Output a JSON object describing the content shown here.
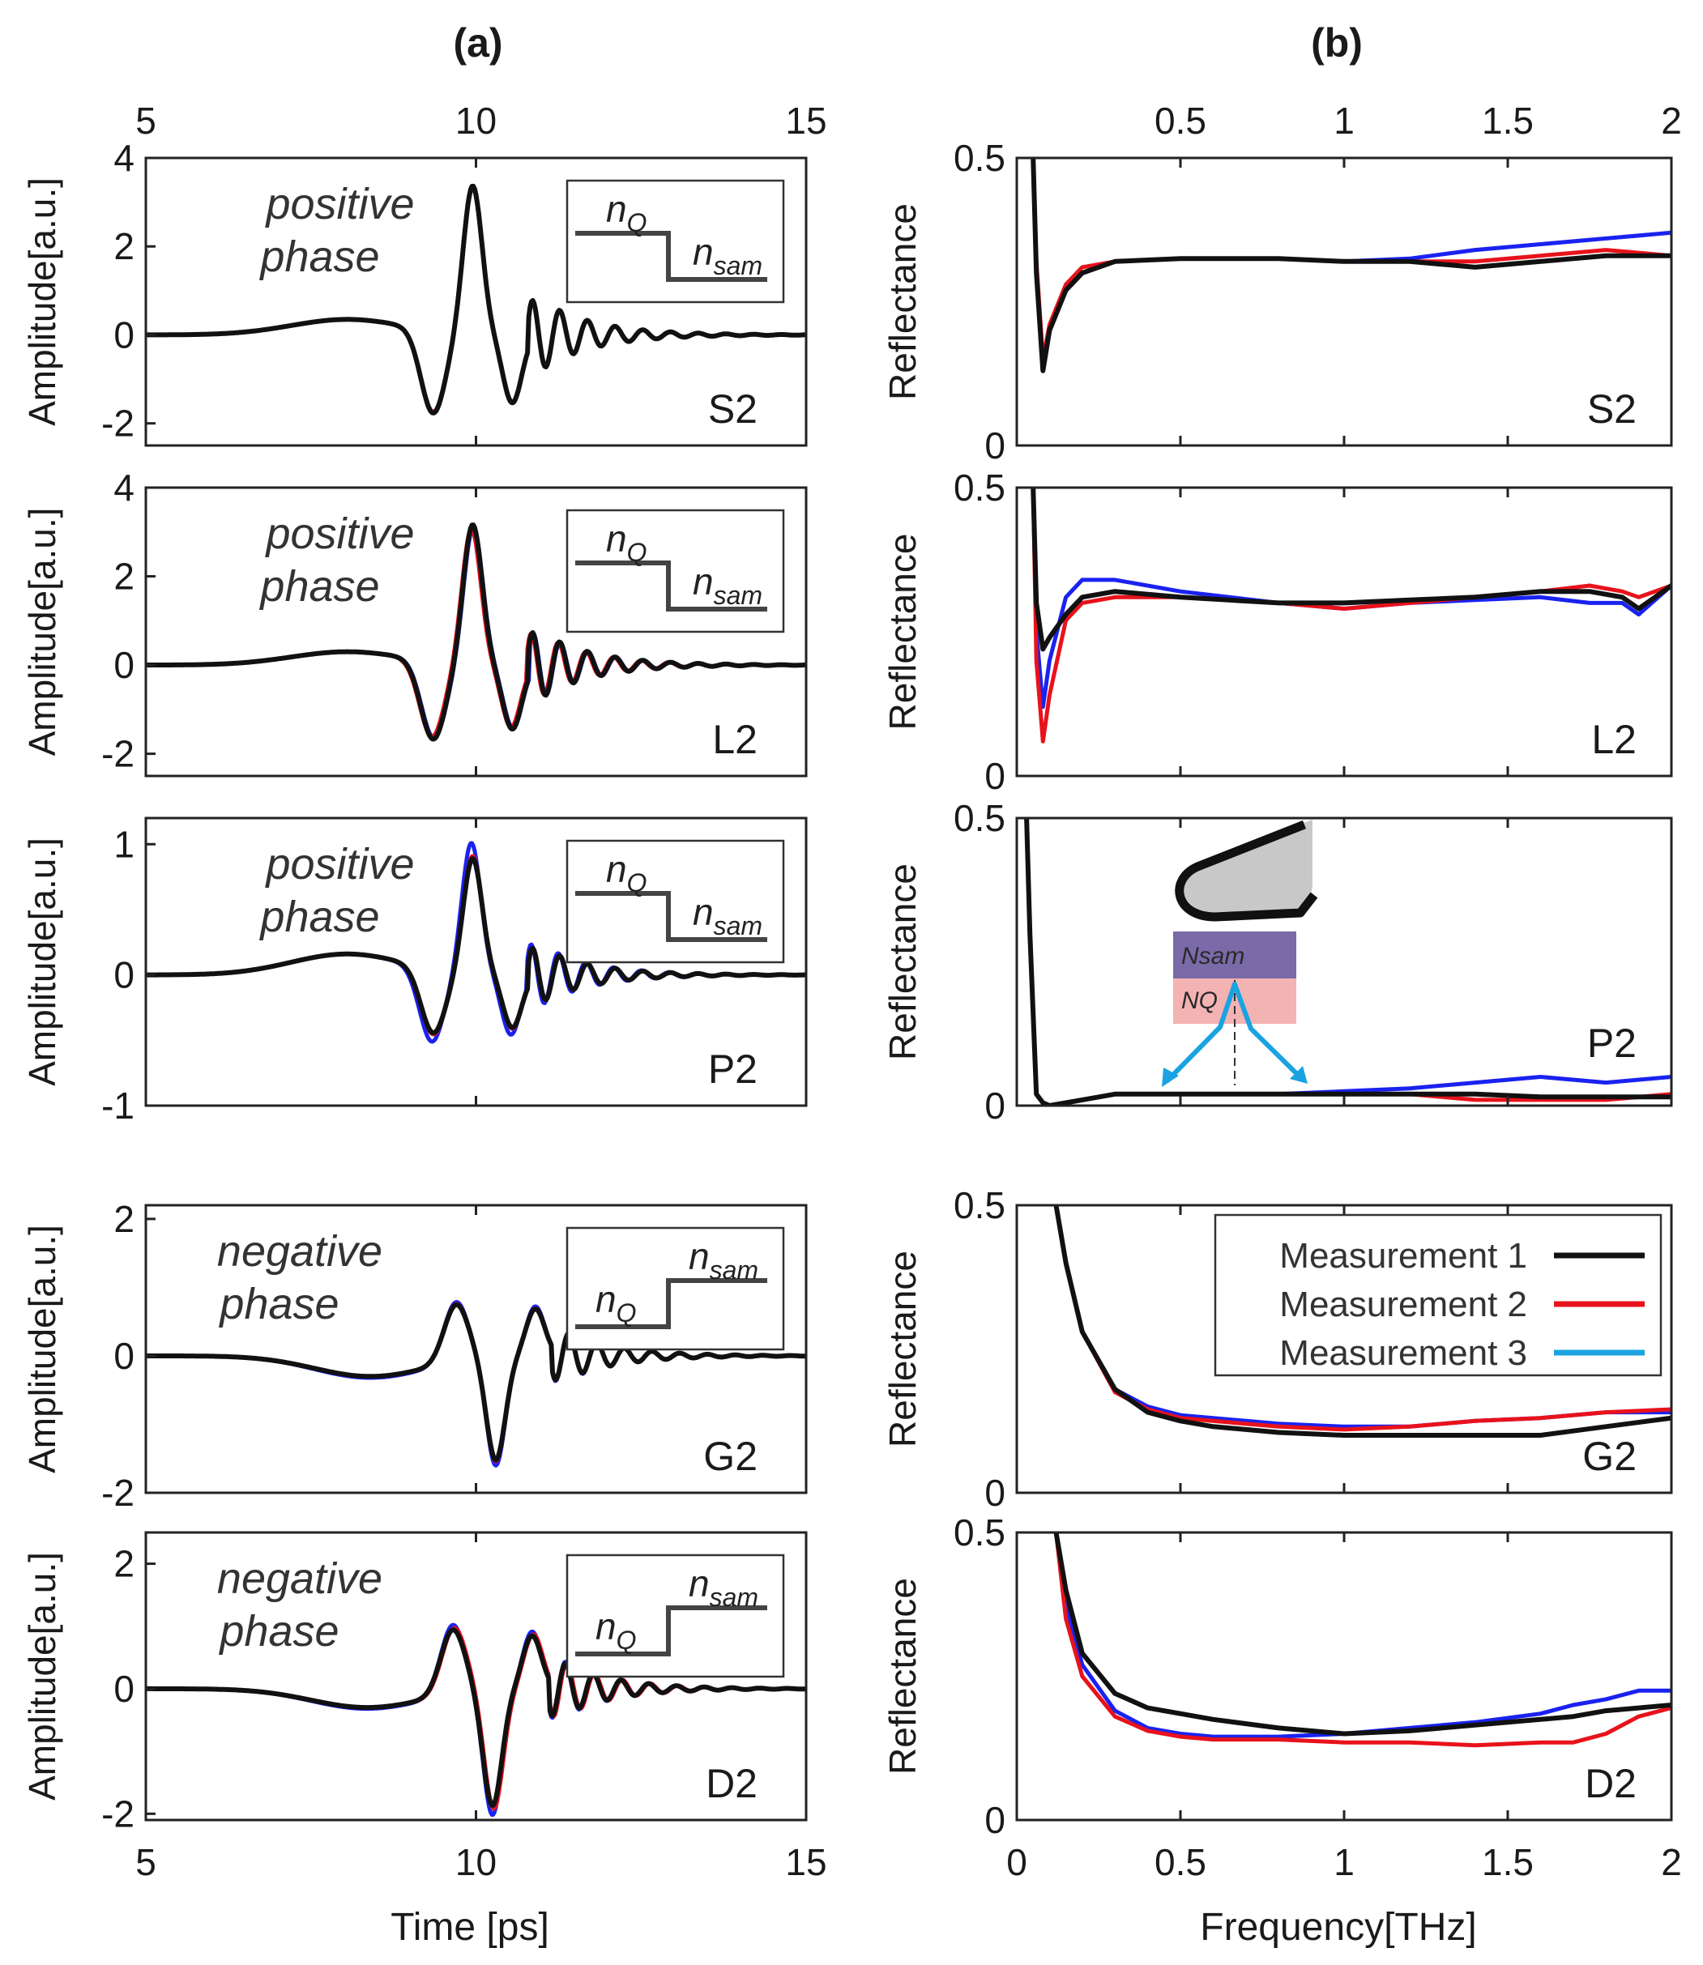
{
  "panels": {
    "a_label": "(a)",
    "b_label": "(b)"
  },
  "phase_labels": {
    "positive": [
      "positive",
      "phase"
    ],
    "negative": [
      "negative",
      "phase"
    ]
  },
  "inset": {
    "n": "n",
    "sub_q": "Q",
    "sub_sam": "sam"
  },
  "illustration": {
    "n_sam": "Nsam",
    "n_q": "NQ"
  },
  "colors": {
    "m1": "#111111",
    "m2": "#e8121b",
    "m3": "#1a22f0",
    "legend_m3": "#1aa3e0"
  },
  "chart_data": [
    {
      "type": "line",
      "id": "a",
      "title": "(a)",
      "xlabel": "Time [ps]",
      "ylabel": "Amplitude[a.u.]",
      "xlim": [
        5,
        15
      ],
      "xticks": [
        "5",
        "10",
        "15"
      ],
      "subplots": [
        {
          "sample": "S2",
          "phase": "positive",
          "ylim": [
            -2.5,
            4
          ],
          "yticks": [
            "-2",
            "0",
            "2",
            "4"
          ],
          "series": [
            {
              "name": "Measurement 1",
              "t0": 9.95,
              "amp": 3.35,
              "pre": 0.35
            },
            {
              "name": "Measurement 2",
              "t0": 9.95,
              "amp": 3.3,
              "pre": 0.35
            },
            {
              "name": "Measurement 3",
              "t0": 9.95,
              "amp": 3.32,
              "pre": 0.35
            }
          ]
        },
        {
          "sample": "L2",
          "phase": "positive",
          "ylim": [
            -2.5,
            4
          ],
          "yticks": [
            "-2",
            "0",
            "2",
            "4"
          ],
          "series": [
            {
              "name": "Measurement 1",
              "t0": 9.95,
              "amp": 3.15,
              "pre": 0.3
            },
            {
              "name": "Measurement 2",
              "t0": 9.93,
              "amp": 3.05,
              "pre": 0.3
            },
            {
              "name": "Measurement 3",
              "t0": 9.96,
              "amp": 3.1,
              "pre": 0.3
            }
          ]
        },
        {
          "sample": "P2",
          "phase": "positive",
          "ylim": [
            -1,
            1.2
          ],
          "yticks": [
            "-1",
            "0",
            "1"
          ],
          "series": [
            {
              "name": "Measurement 1",
              "t0": 9.95,
              "amp": 0.88,
              "pre": 0.16
            },
            {
              "name": "Measurement 2",
              "t0": 9.95,
              "amp": 0.9,
              "pre": 0.16
            },
            {
              "name": "Measurement 3",
              "t0": 9.93,
              "amp": 1.0,
              "pre": 0.16
            }
          ]
        },
        {
          "sample": "G2",
          "phase": "negative",
          "ylim": [
            -2,
            2.2
          ],
          "yticks": [
            "-2",
            "0",
            "2"
          ],
          "series": [
            {
              "name": "Measurement 1",
              "t0": 10.3,
              "amp": -1.5,
              "pre": -0.3
            },
            {
              "name": "Measurement 2",
              "t0": 10.3,
              "amp": -1.52,
              "pre": -0.3
            },
            {
              "name": "Measurement 3",
              "t0": 10.3,
              "amp": -1.58,
              "pre": -0.32
            }
          ]
        },
        {
          "sample": "D2",
          "phase": "negative",
          "ylim": [
            -2.1,
            2.5
          ],
          "yticks": [
            "-2",
            "0",
            "2"
          ],
          "series": [
            {
              "name": "Measurement 1",
              "t0": 10.25,
              "amp": -1.85,
              "pre": -0.3
            },
            {
              "name": "Measurement 2",
              "t0": 10.27,
              "amp": -1.9,
              "pre": -0.3
            },
            {
              "name": "Measurement 3",
              "t0": 10.25,
              "amp": -2.0,
              "pre": -0.32
            }
          ]
        }
      ]
    },
    {
      "type": "line",
      "id": "b",
      "title": "(b)",
      "xlabel": "Frequency[THz]",
      "ylabel": "Reflectance",
      "xlim": [
        0,
        2
      ],
      "xticks": [
        "0",
        "0.5",
        "1",
        "1.5",
        "2"
      ],
      "top_xticks": [
        "0.5",
        "1",
        "1.5",
        "2"
      ],
      "ylim": [
        0,
        0.5
      ],
      "yticks": [
        "0",
        "0.5"
      ],
      "legend": {
        "position": "top-right",
        "entries": [
          "Measurement 1",
          "Measurement 2",
          "Measurement 3"
        ]
      },
      "subplots": [
        {
          "sample": "S2",
          "x": [
            0.05,
            0.06,
            0.08,
            0.1,
            0.15,
            0.2,
            0.3,
            0.5,
            0.8,
            1.0,
            1.2,
            1.4,
            1.6,
            1.8,
            2.0
          ],
          "series": [
            {
              "name": "Measurement 1",
              "values": [
                0.5,
                0.3,
                0.13,
                0.2,
                0.27,
                0.3,
                0.32,
                0.325,
                0.325,
                0.32,
                0.32,
                0.31,
                0.32,
                0.33,
                0.33
              ]
            },
            {
              "name": "Measurement 2",
              "values": [
                0.5,
                0.32,
                0.15,
                0.21,
                0.28,
                0.31,
                0.32,
                0.325,
                0.325,
                0.32,
                0.32,
                0.32,
                0.33,
                0.34,
                0.33
              ]
            },
            {
              "name": "Measurement 3",
              "values": [
                0.5,
                0.31,
                0.14,
                0.2,
                0.27,
                0.3,
                0.32,
                0.325,
                0.325,
                0.32,
                0.325,
                0.34,
                0.35,
                0.36,
                0.37
              ]
            }
          ]
        },
        {
          "sample": "L2",
          "x": [
            0.05,
            0.06,
            0.08,
            0.1,
            0.15,
            0.2,
            0.3,
            0.5,
            0.8,
            1.0,
            1.2,
            1.4,
            1.6,
            1.75,
            1.85,
            1.9,
            2.0
          ],
          "series": [
            {
              "name": "Measurement 1",
              "values": [
                0.5,
                0.3,
                0.22,
                0.24,
                0.28,
                0.31,
                0.32,
                0.31,
                0.3,
                0.3,
                0.305,
                0.31,
                0.32,
                0.32,
                0.31,
                0.29,
                0.33
              ]
            },
            {
              "name": "Measurement 2",
              "values": [
                0.5,
                0.2,
                0.06,
                0.14,
                0.27,
                0.3,
                0.31,
                0.31,
                0.3,
                0.29,
                0.3,
                0.31,
                0.32,
                0.33,
                0.32,
                0.31,
                0.33
              ]
            },
            {
              "name": "Measurement 3",
              "values": [
                0.5,
                0.25,
                0.12,
                0.2,
                0.31,
                0.34,
                0.34,
                0.32,
                0.3,
                0.29,
                0.3,
                0.305,
                0.31,
                0.3,
                0.3,
                0.28,
                0.33
              ]
            }
          ]
        },
        {
          "sample": "P2",
          "x": [
            0.03,
            0.04,
            0.06,
            0.08,
            0.1,
            0.15,
            0.2,
            0.3,
            0.5,
            0.8,
            1.0,
            1.2,
            1.4,
            1.6,
            1.8,
            2.0
          ],
          "series": [
            {
              "name": "Measurement 1",
              "values": [
                0.5,
                0.3,
                0.02,
                0.005,
                0.0,
                0.005,
                0.01,
                0.02,
                0.02,
                0.02,
                0.02,
                0.02,
                0.02,
                0.015,
                0.015,
                0.015
              ]
            },
            {
              "name": "Measurement 2",
              "values": [
                0.5,
                0.3,
                0.02,
                0.005,
                0.0,
                0.005,
                0.01,
                0.02,
                0.02,
                0.02,
                0.02,
                0.02,
                0.01,
                0.01,
                0.01,
                0.02
              ]
            },
            {
              "name": "Measurement 3",
              "values": [
                0.5,
                0.3,
                0.02,
                0.005,
                0.0,
                0.005,
                0.01,
                0.02,
                0.02,
                0.02,
                0.025,
                0.03,
                0.04,
                0.05,
                0.04,
                0.05
              ]
            }
          ]
        },
        {
          "sample": "G2",
          "x": [
            0.12,
            0.15,
            0.2,
            0.3,
            0.4,
            0.5,
            0.6,
            0.8,
            1.0,
            1.2,
            1.4,
            1.6,
            1.8,
            2.0
          ],
          "series": [
            {
              "name": "Measurement 1",
              "values": [
                0.5,
                0.4,
                0.28,
                0.18,
                0.14,
                0.125,
                0.115,
                0.105,
                0.1,
                0.1,
                0.1,
                0.1,
                0.115,
                0.13
              ]
            },
            {
              "name": "Measurement 2",
              "values": [
                0.5,
                0.4,
                0.28,
                0.175,
                0.145,
                0.13,
                0.125,
                0.115,
                0.11,
                0.115,
                0.125,
                0.13,
                0.14,
                0.145
              ]
            },
            {
              "name": "Measurement 3",
              "values": [
                0.5,
                0.4,
                0.28,
                0.18,
                0.15,
                0.135,
                0.13,
                0.12,
                0.115,
                0.115,
                0.125,
                0.13,
                0.14,
                0.14
              ]
            }
          ]
        },
        {
          "sample": "D2",
          "x": [
            0.12,
            0.15,
            0.2,
            0.3,
            0.4,
            0.5,
            0.6,
            0.8,
            1.0,
            1.2,
            1.4,
            1.6,
            1.7,
            1.8,
            1.9,
            2.0
          ],
          "series": [
            {
              "name": "Measurement 1",
              "values": [
                0.5,
                0.4,
                0.29,
                0.22,
                0.195,
                0.185,
                0.175,
                0.16,
                0.15,
                0.155,
                0.165,
                0.175,
                0.18,
                0.19,
                0.195,
                0.2
              ]
            },
            {
              "name": "Measurement 2",
              "values": [
                0.5,
                0.35,
                0.25,
                0.18,
                0.155,
                0.145,
                0.14,
                0.14,
                0.135,
                0.135,
                0.13,
                0.135,
                0.135,
                0.15,
                0.18,
                0.195
              ]
            },
            {
              "name": "Measurement 3",
              "values": [
                0.5,
                0.37,
                0.27,
                0.19,
                0.16,
                0.15,
                0.145,
                0.145,
                0.15,
                0.16,
                0.17,
                0.185,
                0.2,
                0.21,
                0.225,
                0.225
              ]
            }
          ]
        }
      ]
    }
  ]
}
